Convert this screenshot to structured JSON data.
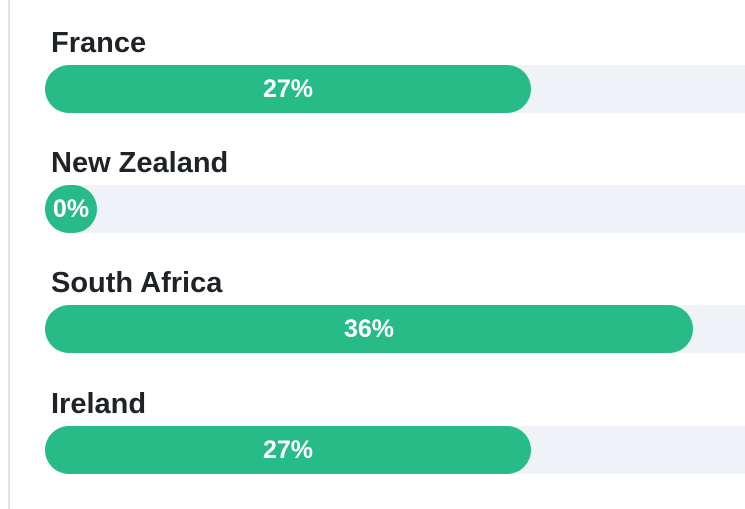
{
  "poll": {
    "options": [
      {
        "label": "France",
        "percent_text": "27%",
        "fraction": 0.27
      },
      {
        "label": "New Zealand",
        "percent_text": "0%",
        "fraction": 0.0
      },
      {
        "label": "South Africa",
        "percent_text": "36%",
        "fraction": 0.36
      },
      {
        "label": "Ireland",
        "percent_text": "27%",
        "fraction": 0.27
      }
    ],
    "bar_color": "#27bb87",
    "track_color": "#eff3f8",
    "label_color": "#1f2328"
  }
}
